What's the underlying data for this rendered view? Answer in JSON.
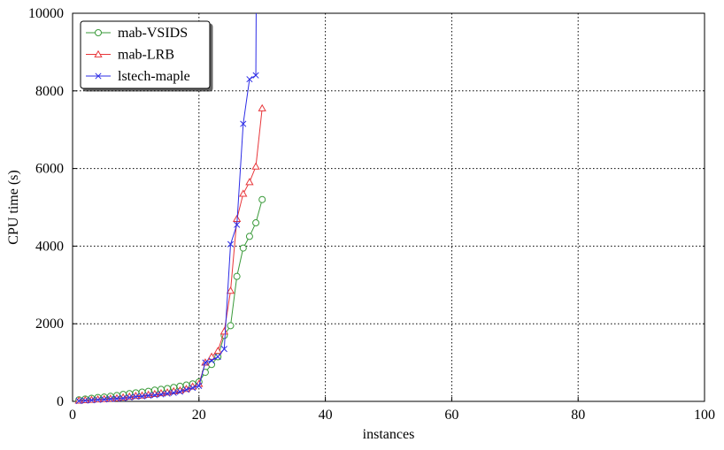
{
  "chart_data": {
    "type": "line",
    "title": "",
    "xlabel": "instances",
    "ylabel": "CPU time (s)",
    "xlim": [
      0,
      100
    ],
    "ylim": [
      0,
      10000
    ],
    "xticks": [
      0,
      20,
      40,
      60,
      80,
      100
    ],
    "yticks": [
      0,
      2000,
      4000,
      6000,
      8000,
      10000
    ],
    "grid": true,
    "legend_position": "top-left",
    "series": [
      {
        "name": "mab-VSIDS",
        "color": "#3a9a3a",
        "marker": "circle",
        "x": [
          1,
          2,
          3,
          4,
          5,
          6,
          7,
          8,
          9,
          10,
          11,
          12,
          13,
          14,
          15,
          16,
          17,
          18,
          19,
          20,
          21,
          22,
          23,
          24,
          25,
          26,
          27,
          28,
          29,
          30
        ],
        "y": [
          40,
          60,
          80,
          100,
          110,
          130,
          150,
          180,
          200,
          220,
          240,
          260,
          290,
          310,
          330,
          360,
          390,
          420,
          450,
          500,
          750,
          950,
          1150,
          1700,
          1950,
          3220,
          3950,
          4250,
          4600,
          5200
        ]
      },
      {
        "name": "mab-LRB",
        "color": "#e8363a",
        "marker": "triangle",
        "x": [
          1,
          2,
          3,
          4,
          5,
          6,
          7,
          8,
          9,
          10,
          11,
          12,
          13,
          14,
          15,
          16,
          17,
          18,
          19,
          20,
          21,
          22,
          23,
          24,
          25,
          26,
          27,
          28,
          29,
          30
        ],
        "y": [
          20,
          30,
          40,
          50,
          60,
          70,
          80,
          100,
          120,
          140,
          150,
          170,
          190,
          210,
          230,
          260,
          280,
          320,
          380,
          450,
          1000,
          1150,
          1300,
          1800,
          2850,
          4700,
          5350,
          5650,
          6050,
          7550
        ]
      },
      {
        "name": "lstech-maple",
        "color": "#2c2ce6",
        "marker": "x",
        "x": [
          1,
          2,
          3,
          4,
          5,
          6,
          7,
          8,
          9,
          10,
          11,
          12,
          13,
          14,
          15,
          16,
          17,
          18,
          19,
          20,
          21,
          22,
          23,
          24,
          25,
          26,
          27,
          28,
          29,
          29.05
        ],
        "y": [
          10,
          20,
          30,
          40,
          50,
          60,
          70,
          80,
          100,
          120,
          130,
          150,
          160,
          180,
          200,
          220,
          250,
          300,
          350,
          400,
          1000,
          1050,
          1150,
          1350,
          4050,
          4550,
          7150,
          8300,
          8400,
          10000
        ]
      }
    ]
  }
}
